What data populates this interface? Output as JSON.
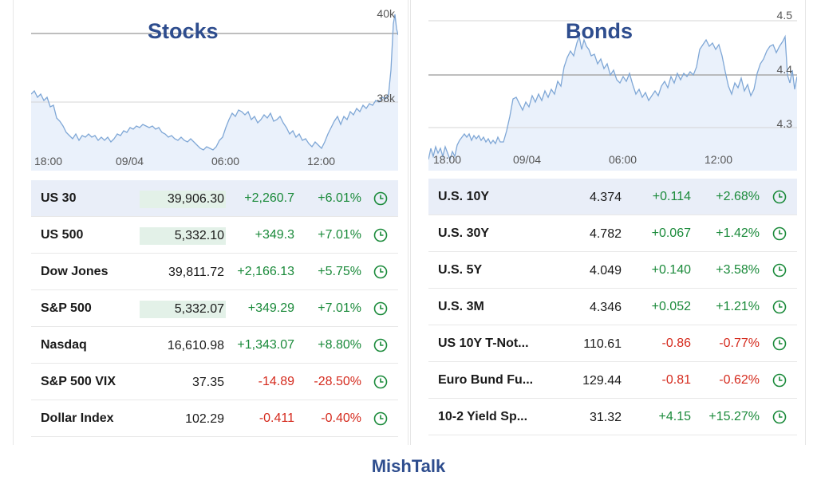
{
  "stocks": {
    "title": "Stocks",
    "chart": {
      "y_labels": [
        "40k",
        "38k"
      ],
      "x_labels": [
        "18:00",
        "09/04",
        "06:00",
        "12:00"
      ]
    },
    "rows": [
      {
        "name": "US 30",
        "price": "39,906.30",
        "change": "+2,260.7",
        "percent": "+6.01%",
        "direction": "up",
        "flash": true
      },
      {
        "name": "US 500",
        "price": "5,332.10",
        "change": "+349.3",
        "percent": "+7.01%",
        "direction": "up",
        "flash": true
      },
      {
        "name": "Dow Jones",
        "price": "39,811.72",
        "change": "+2,166.13",
        "percent": "+5.75%",
        "direction": "up",
        "flash": false
      },
      {
        "name": "S&P 500",
        "price": "5,332.07",
        "change": "+349.29",
        "percent": "+7.01%",
        "direction": "up",
        "flash": true
      },
      {
        "name": "Nasdaq",
        "price": "16,610.98",
        "change": "+1,343.07",
        "percent": "+8.80%",
        "direction": "up",
        "flash": false
      },
      {
        "name": "S&P 500 VIX",
        "price": "37.35",
        "change": "-14.89",
        "percent": "-28.50%",
        "direction": "down",
        "flash": false
      },
      {
        "name": "Dollar Index",
        "price": "102.29",
        "change": "-0.411",
        "percent": "-0.40%",
        "direction": "down",
        "flash": false
      }
    ]
  },
  "bonds": {
    "title": "Bonds",
    "chart": {
      "y_labels": [
        "4.5",
        "4.4",
        "4.3"
      ],
      "x_labels": [
        "18:00",
        "09/04",
        "06:00",
        "12:00"
      ]
    },
    "rows": [
      {
        "name": "U.S. 10Y",
        "price": "4.374",
        "change": "+0.114",
        "percent": "+2.68%",
        "direction": "up"
      },
      {
        "name": "U.S. 30Y",
        "price": "4.782",
        "change": "+0.067",
        "percent": "+1.42%",
        "direction": "up"
      },
      {
        "name": "U.S. 5Y",
        "price": "4.049",
        "change": "+0.140",
        "percent": "+3.58%",
        "direction": "up"
      },
      {
        "name": "U.S. 3M",
        "price": "4.346",
        "change": "+0.052",
        "percent": "+1.21%",
        "direction": "up"
      },
      {
        "name": "US 10Y T-Not...",
        "price": "110.61",
        "change": "-0.86",
        "percent": "-0.77%",
        "direction": "down"
      },
      {
        "name": "Euro Bund Fu...",
        "price": "129.44",
        "change": "-0.81",
        "percent": "-0.62%",
        "direction": "down"
      },
      {
        "name": "10-2 Yield Sp...",
        "price": "31.32",
        "change": "+4.15",
        "percent": "+15.27%",
        "direction": "up"
      }
    ]
  },
  "footer": {
    "brand": "MishTalk"
  },
  "colors": {
    "up": "#1a8a3a",
    "down": "#d52b1e",
    "brand": "#2e4d8e",
    "line": "#7fa7d6",
    "fill": "#eaf1fb",
    "highlight": "#e9eef8"
  }
}
